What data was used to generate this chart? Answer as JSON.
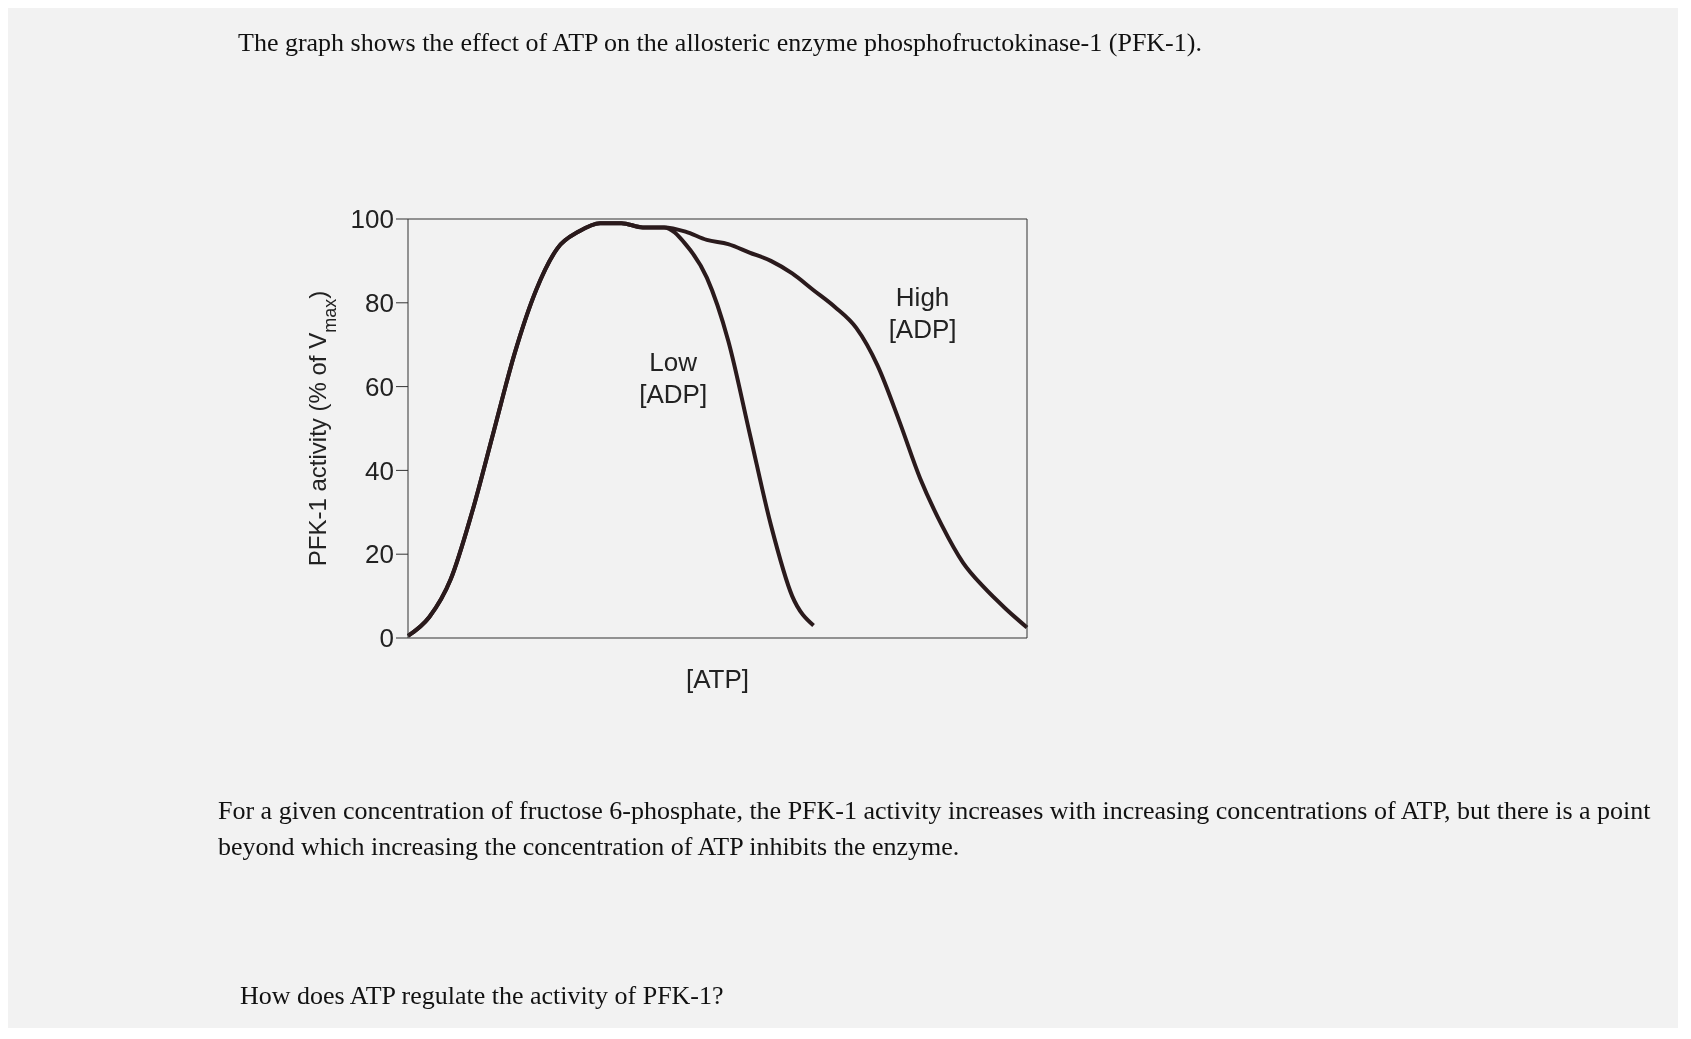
{
  "chart_data": {
    "type": "line",
    "title": "The graph shows the effect of ATP on the allosteric enzyme phosphofructokinase-1 (PFK-1).",
    "xlabel": "[ATP]",
    "ylabel": "PFK-1 activity (% of V$_{max}$)",
    "categories": [
      null,
      null,
      null,
      null,
      null,
      null,
      null,
      null,
      null,
      null,
      null,
      null,
      null,
      null,
      null,
      null,
      null,
      null,
      null,
      null,
      null,
      null,
      null,
      null,
      null,
      null,
      null,
      null,
      null,
      null
    ],
    "series": [
      {
        "name": "Low [ADP]",
        "color": "#2a1a1c",
        "values": [
          0.5,
          5,
          14,
          30,
          49,
          68,
          83,
          93,
          97,
          99,
          99,
          98,
          98,
          94,
          86,
          71,
          49,
          27,
          10,
          3,
          null,
          null,
          null,
          null,
          null,
          null,
          null,
          null,
          null,
          null
        ]
      },
      {
        "name": "High [ADP]",
        "color": "#2a1a1c",
        "values": [
          0.5,
          5,
          14,
          30,
          49,
          68,
          83,
          93,
          97,
          99,
          99,
          98,
          98,
          97,
          95,
          94,
          92,
          90,
          87,
          83,
          79,
          74,
          65,
          52,
          38,
          27,
          18,
          12,
          7,
          2.5
        ]
      }
    ],
    "ylim": [
      0,
      100
    ],
    "yticks": [
      0,
      20,
      40,
      60,
      80,
      100
    ],
    "marker": "none",
    "line_style": "solid",
    "annotations": [
      "For a given concentration of fructose 6-phosphate, the PFK-1 activity increases with increasing concentrations of ATP, but there is a point beyond which increasing the concentration of ATP inhibits the enzyme.",
      "How does ATP regulate the activity of PFK-1?"
    ]
  }
}
